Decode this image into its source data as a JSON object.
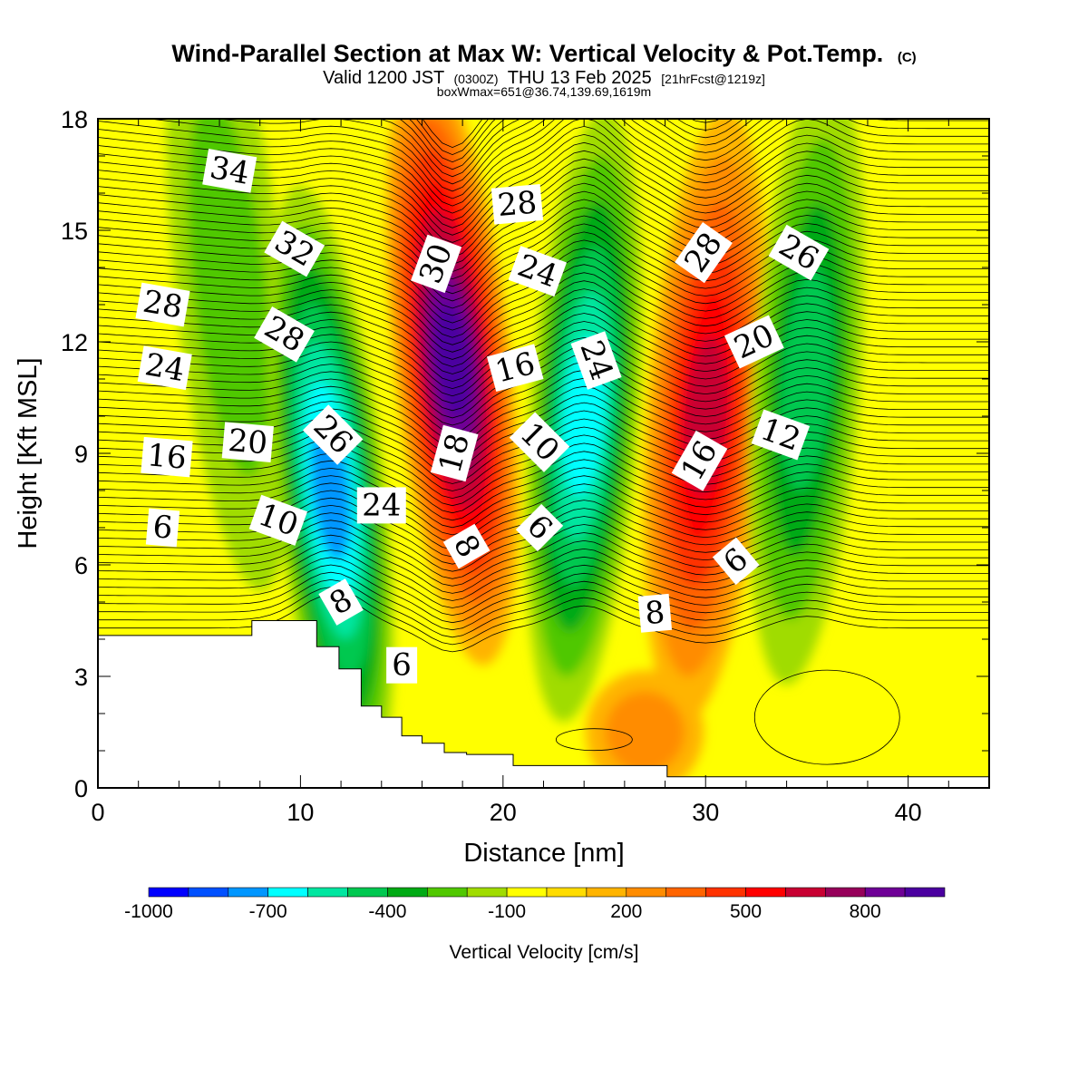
{
  "header": {
    "title": "Wind-Parallel Section at Max W: Vertical Velocity & Pot.Temp.",
    "copyright": "(C)",
    "subtitle_prefix": "Valid 1200 JST",
    "subtitle_utc": "(0300Z)",
    "subtitle_date": "THU 13 Feb 2025",
    "subtitle_fcst": "[21hrFcst@1219z]",
    "box_info": "boxWmax=651@36.74,139.69,1619m"
  },
  "chart_data": {
    "type": "heatmap",
    "xlabel": "Distance [nm]",
    "ylabel": "Height [Kft MSL]",
    "xlim": [
      0,
      44
    ],
    "ylim": [
      0,
      18
    ],
    "x_ticks": [
      "0",
      "10",
      "20",
      "30",
      "40"
    ],
    "y_ticks": [
      "0",
      "3",
      "6",
      "9",
      "12",
      "15",
      "18"
    ],
    "colorbar": {
      "title": "Vertical Velocity [cm/s]",
      "levels": [
        -1000,
        -900,
        -800,
        -700,
        -600,
        -500,
        -400,
        -300,
        -200,
        -100,
        0,
        100,
        200,
        300,
        400,
        500,
        600,
        700,
        800,
        900
      ],
      "tick_labels": [
        "-1000",
        "-700",
        "-400",
        "-100",
        "200",
        "500",
        "800"
      ],
      "colors": [
        "#0000ff",
        "#0050ff",
        "#0096ff",
        "#00ffff",
        "#00e6a0",
        "#00c850",
        "#00aa14",
        "#50c800",
        "#a0dc00",
        "#ffff00",
        "#ffdc00",
        "#ffb400",
        "#ff8c00",
        "#ff6400",
        "#ff3200",
        "#ff0000",
        "#c80032",
        "#96005a",
        "#6e0096",
        "#4b00a0"
      ]
    },
    "terrain_profile_x": [
      0,
      7.6,
      7.6,
      10.8,
      10.8,
      11.9,
      11.9,
      13.0,
      13.0,
      14.0,
      14.0,
      15.0,
      15.0,
      16.0,
      16.0,
      17.1,
      17.1,
      18.2,
      18.2,
      20.5,
      20.5,
      28.1,
      28.1,
      44
    ],
    "terrain_profile_y": [
      4.1,
      4.1,
      4.5,
      4.5,
      3.8,
      3.8,
      3.2,
      3.2,
      2.2,
      2.2,
      1.9,
      1.9,
      1.4,
      1.4,
      1.2,
      1.2,
      0.95,
      0.95,
      0.9,
      0.9,
      0.6,
      0.6,
      0.3,
      0.3
    ],
    "vertical_velocity_features": [
      {
        "x": 6.5,
        "z": 13.5,
        "w": -200
      },
      {
        "x": 11.5,
        "z": 8.0,
        "w": -700
      },
      {
        "x": 17.5,
        "z": 11.5,
        "w": 900
      },
      {
        "x": 24.0,
        "z": 10.0,
        "w": -600
      },
      {
        "x": 30.0,
        "z": 10.0,
        "w": 600
      },
      {
        "x": 35.0,
        "z": 11.0,
        "w": -400
      },
      {
        "x": 27.0,
        "z": 1.5,
        "w": 200
      }
    ],
    "theta_contour_labels": [
      {
        "text": "34",
        "x": 6.5,
        "z": 16.6,
        "rot": 10
      },
      {
        "text": "32",
        "x": 9.7,
        "z": 14.5,
        "rot": 30
      },
      {
        "text": "28",
        "x": 3.2,
        "z": 13.0,
        "rot": 10
      },
      {
        "text": "28",
        "x": 9.2,
        "z": 12.2,
        "rot": 30
      },
      {
        "text": "24",
        "x": 3.3,
        "z": 11.3,
        "rot": 10
      },
      {
        "text": "20",
        "x": 7.4,
        "z": 9.3,
        "rot": 5
      },
      {
        "text": "26",
        "x": 11.6,
        "z": 9.5,
        "rot": 45
      },
      {
        "text": "16",
        "x": 3.4,
        "z": 8.9,
        "rot": 5
      },
      {
        "text": "10",
        "x": 8.9,
        "z": 7.2,
        "rot": 20
      },
      {
        "text": "24",
        "x": 14.0,
        "z": 7.6,
        "rot": 0
      },
      {
        "text": "6",
        "x": 3.2,
        "z": 7.0,
        "rot": 5
      },
      {
        "text": "8",
        "x": 12.0,
        "z": 5.0,
        "rot": -30
      },
      {
        "text": "6",
        "x": 15.0,
        "z": 3.3,
        "rot": 0
      },
      {
        "text": "28",
        "x": 20.7,
        "z": 15.7,
        "rot": -5
      },
      {
        "text": "30",
        "x": 16.7,
        "z": 14.1,
        "rot": -70
      },
      {
        "text": "24",
        "x": 21.7,
        "z": 13.9,
        "rot": 20
      },
      {
        "text": "16",
        "x": 20.6,
        "z": 11.3,
        "rot": -15
      },
      {
        "text": "24",
        "x": 24.6,
        "z": 11.5,
        "rot": 70
      },
      {
        "text": "18",
        "x": 17.6,
        "z": 9.0,
        "rot": -75
      },
      {
        "text": "10",
        "x": 21.8,
        "z": 9.3,
        "rot": 45
      },
      {
        "text": "8",
        "x": 18.2,
        "z": 6.5,
        "rot": 60
      },
      {
        "text": "6",
        "x": 21.8,
        "z": 7.0,
        "rot": 45
      },
      {
        "text": "28",
        "x": 29.9,
        "z": 14.4,
        "rot": -55
      },
      {
        "text": "26",
        "x": 34.6,
        "z": 14.4,
        "rot": 30
      },
      {
        "text": "20",
        "x": 32.4,
        "z": 12.0,
        "rot": -25
      },
      {
        "text": "12",
        "x": 33.7,
        "z": 9.5,
        "rot": 20
      },
      {
        "text": "16",
        "x": 29.7,
        "z": 8.8,
        "rot": -60
      },
      {
        "text": "6",
        "x": 31.5,
        "z": 6.1,
        "rot": -40
      },
      {
        "text": "8",
        "x": 27.5,
        "z": 4.7,
        "rot": -5
      }
    ]
  }
}
